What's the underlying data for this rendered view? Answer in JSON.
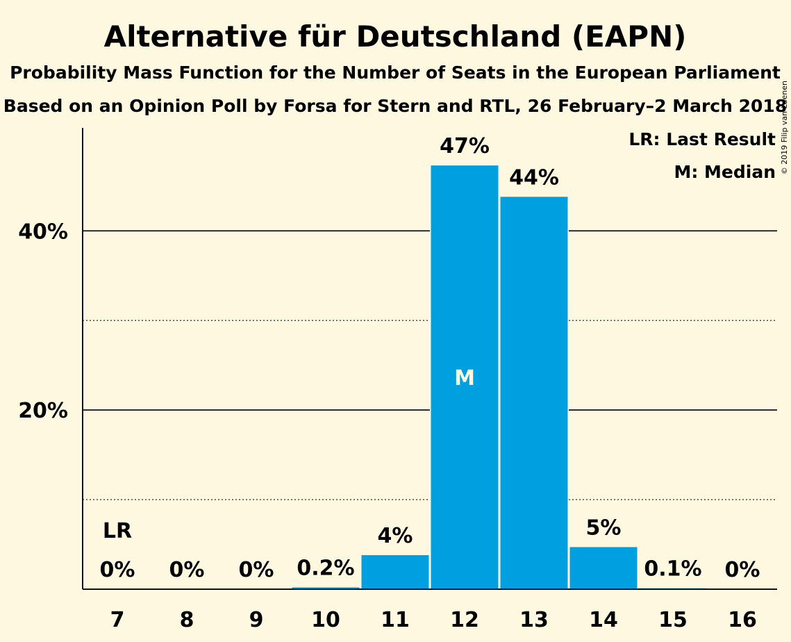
{
  "chart_data": {
    "type": "bar",
    "title": "Alternative für Deutschland (EAPN)",
    "subtitle": "Probability Mass Function for the Number of Seats in the European Parliament",
    "subtitle2": "Based on an Opinion Poll by Forsa for Stern and RTL, 26 February–2 March 2018",
    "credit": "© 2019 Filip van Laenen",
    "categories": [
      "7",
      "8",
      "9",
      "10",
      "11",
      "12",
      "13",
      "14",
      "15",
      "16"
    ],
    "values": [
      0,
      0,
      0,
      0.2,
      3.8,
      47.3,
      43.8,
      4.7,
      0.1,
      0
    ],
    "data_labels": [
      "0%",
      "0%",
      "0%",
      "0.2%",
      "4%",
      "47%",
      "44%",
      "5%",
      "0.1%",
      "0%"
    ],
    "ylim": [
      0,
      51.5
    ],
    "y_major_ticks": [
      20,
      40
    ],
    "y_tick_labels": [
      "20%",
      "40%"
    ],
    "y_minor_ticks": [
      10,
      30
    ],
    "last_result_index": 0,
    "last_result_marker": "LR",
    "median_index": 5,
    "median_marker": "M",
    "legend": [
      "LR: Last Result",
      "M: Median"
    ],
    "legend_position": "top-right",
    "bar_color": "#00A0E0",
    "background_color": "#FFF8E1"
  }
}
